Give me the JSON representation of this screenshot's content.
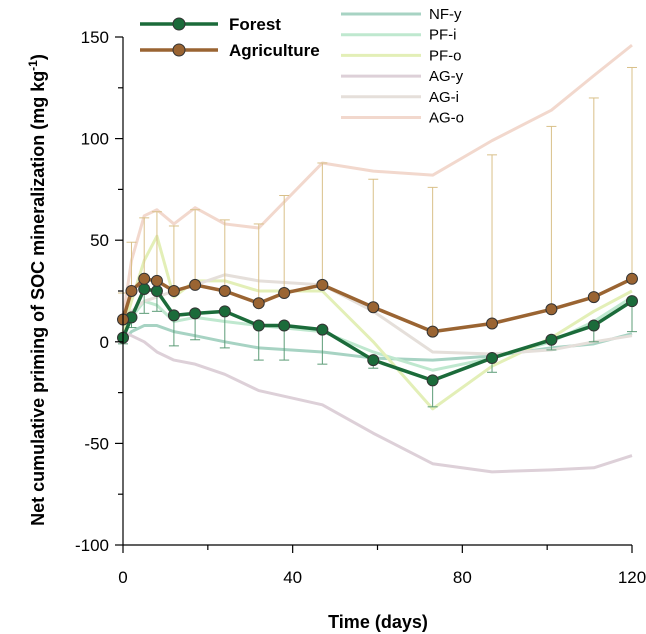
{
  "chart_data": {
    "type": "line",
    "xlabel": "Time (days)",
    "ylabel_main": "Net cumulative priming of SOC mineralization (mg kg",
    "ylabel_sup": "-1",
    "ylabel_end": ")",
    "xlim": [
      0,
      120
    ],
    "ylim": [
      -100,
      150
    ],
    "xticks": [
      0,
      40,
      80,
      120
    ],
    "yticks": [
      -100,
      -50,
      0,
      50,
      100,
      150
    ],
    "xtick_labels": [
      "0",
      "40",
      "80",
      "120"
    ],
    "ytick_labels": [
      "-100",
      "-50",
      "0",
      "50",
      "100",
      "150"
    ],
    "grid": false,
    "legend_position": "top",
    "main_series": [
      {
        "name": "Forest",
        "color": "#1b6b3a",
        "x": [
          0,
          2,
          5,
          8,
          12,
          17,
          24,
          32,
          38,
          47,
          59,
          73,
          87,
          101,
          111,
          120
        ],
        "y": [
          2,
          12,
          26,
          25,
          13,
          14,
          15,
          8,
          8,
          6,
          -9,
          -19,
          -8,
          1,
          8,
          20
        ],
        "error_upper": [
          0,
          0,
          0,
          0,
          0,
          0,
          0,
          0,
          0,
          0,
          0,
          0,
          0,
          0,
          0,
          0
        ],
        "error_lower": [
          3,
          5,
          12,
          10,
          15,
          13,
          18,
          17,
          17,
          17,
          4,
          13,
          7,
          5,
          8,
          15
        ]
      },
      {
        "name": "Agriculture",
        "color": "#9a6432",
        "x": [
          0,
          2,
          5,
          8,
          12,
          17,
          24,
          32,
          38,
          47,
          59,
          73,
          87,
          101,
          111,
          120
        ],
        "y": [
          11,
          25,
          31,
          30,
          25,
          28,
          25,
          19,
          24,
          28,
          17,
          5,
          9,
          16,
          22,
          31
        ],
        "error_upper": [
          13,
          24,
          30,
          34,
          32,
          37,
          35,
          39,
          48,
          60,
          63,
          71,
          83,
          90,
          98,
          104
        ],
        "error_lower": [
          0,
          0,
          0,
          0,
          0,
          0,
          0,
          0,
          0,
          0,
          0,
          0,
          0,
          0,
          0,
          0
        ]
      }
    ],
    "series": [
      {
        "name": "NF-y",
        "color": "#a7d3c3",
        "x": [
          0,
          2,
          5,
          8,
          12,
          17,
          24,
          32,
          47,
          59,
          73,
          87,
          101,
          111,
          120
        ],
        "y": [
          0,
          5,
          8,
          8,
          5,
          3,
          0,
          -3,
          -5,
          -8,
          -9,
          -7,
          -3,
          -1,
          4
        ]
      },
      {
        "name": "PF-i",
        "color": "#bfe8cf",
        "x": [
          0,
          2,
          5,
          8,
          12,
          17,
          24,
          32,
          47,
          59,
          73,
          87,
          101,
          111,
          120
        ],
        "y": [
          1,
          12,
          20,
          18,
          10,
          12,
          10,
          8,
          5,
          -5,
          -14,
          -8,
          0,
          10,
          22
        ]
      },
      {
        "name": "PF-o",
        "color": "#e3efb7",
        "x": [
          0,
          2,
          5,
          8,
          12,
          17,
          24,
          32,
          47,
          59,
          73,
          87,
          101,
          111,
          120
        ],
        "y": [
          5,
          20,
          40,
          52,
          22,
          30,
          30,
          25,
          25,
          0,
          -33,
          -12,
          2,
          15,
          25
        ]
      },
      {
        "name": "AG-y",
        "color": "#ddd0d8",
        "x": [
          0,
          2,
          5,
          8,
          12,
          17,
          24,
          32,
          47,
          59,
          73,
          87,
          101,
          111,
          120
        ],
        "y": [
          5,
          3,
          0,
          -5,
          -9,
          -11,
          -16,
          -24,
          -31,
          -45,
          -60,
          -64,
          -63,
          -62,
          -56
        ]
      },
      {
        "name": "AG-i",
        "color": "#e5dfda",
        "x": [
          0,
          2,
          5,
          8,
          12,
          17,
          24,
          32,
          47,
          59,
          73,
          87,
          101,
          111,
          120
        ],
        "y": [
          10,
          15,
          20,
          22,
          25,
          28,
          33,
          30,
          28,
          15,
          -5,
          -6,
          -4,
          0,
          3
        ]
      },
      {
        "name": "AG-o",
        "color": "#f2d8cd",
        "x": [
          0,
          2,
          5,
          8,
          12,
          17,
          24,
          32,
          47,
          59,
          73,
          87,
          101,
          111,
          120
        ],
        "y": [
          12,
          40,
          62,
          65,
          58,
          66,
          58,
          56,
          88,
          84,
          82,
          99,
          114,
          131,
          146
        ]
      }
    ]
  }
}
